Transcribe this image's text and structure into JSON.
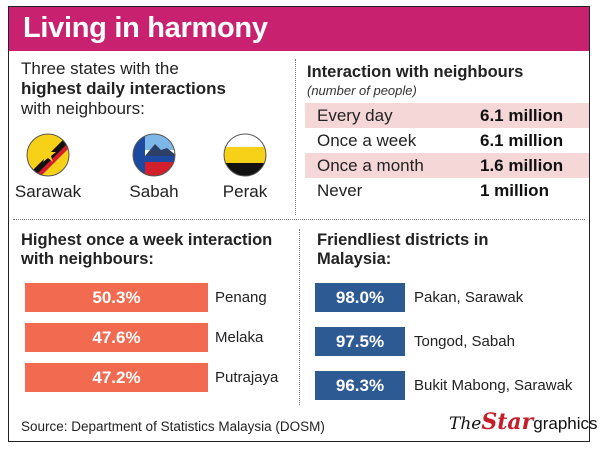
{
  "title": "Living in harmony",
  "intro": {
    "line1": "Three states with the",
    "line2_bold": "highest daily interactions",
    "line3": "with neighbours:"
  },
  "states": [
    {
      "name": "Sarawak",
      "icon": "sarawak-flag-icon"
    },
    {
      "name": "Sabah",
      "icon": "sabah-flag-icon"
    },
    {
      "name": "Perak",
      "icon": "perak-flag-icon"
    }
  ],
  "interaction": {
    "title": "Interaction with neighbours",
    "subtitle": "(number of people)",
    "rows": [
      {
        "label": "Every day",
        "value": "6.1 million"
      },
      {
        "label": "Once a week",
        "value": "6.1 million"
      },
      {
        "label": "Once a month",
        "value": "1.6 million"
      },
      {
        "label": "Never",
        "value": "1 million"
      }
    ]
  },
  "weekly": {
    "title_line1": "Highest once a week interaction",
    "title_line2": "with neighbours:"
  },
  "friendliest": {
    "title_line1": "Friendliest districts in",
    "title_line2": "Malaysia:"
  },
  "chart_data": [
    {
      "type": "bar",
      "title": "Highest once a week interaction with neighbours:",
      "categories": [
        "Penang",
        "Melaka",
        "Putrajaya"
      ],
      "values": [
        50.3,
        47.6,
        47.2
      ],
      "value_labels": [
        "50.3%",
        "47.6%",
        "47.2%"
      ],
      "orientation": "horizontal",
      "color": "#f26a4f"
    },
    {
      "type": "bar",
      "title": "Friendliest districts in Malaysia:",
      "categories": [
        "Pakan, Sarawak",
        "Tongod, Sabah",
        "Bukit Mabong,  Sarawak"
      ],
      "values": [
        98.0,
        97.5,
        96.3
      ],
      "value_labels": [
        "98.0%",
        "97.5%",
        "96.3%"
      ],
      "orientation": "horizontal",
      "color": "#2d5a92"
    }
  ],
  "colors": {
    "header": "#c8216f",
    "row_shade": "#f6d7d7",
    "orange": "#f26a4f",
    "blue": "#2d5a92"
  },
  "footer": {
    "source": "Source: Department of Statistics Malaysia (DOSM)",
    "logo_the": "The",
    "logo_star": "Star",
    "logo_graphics": "graphics"
  }
}
